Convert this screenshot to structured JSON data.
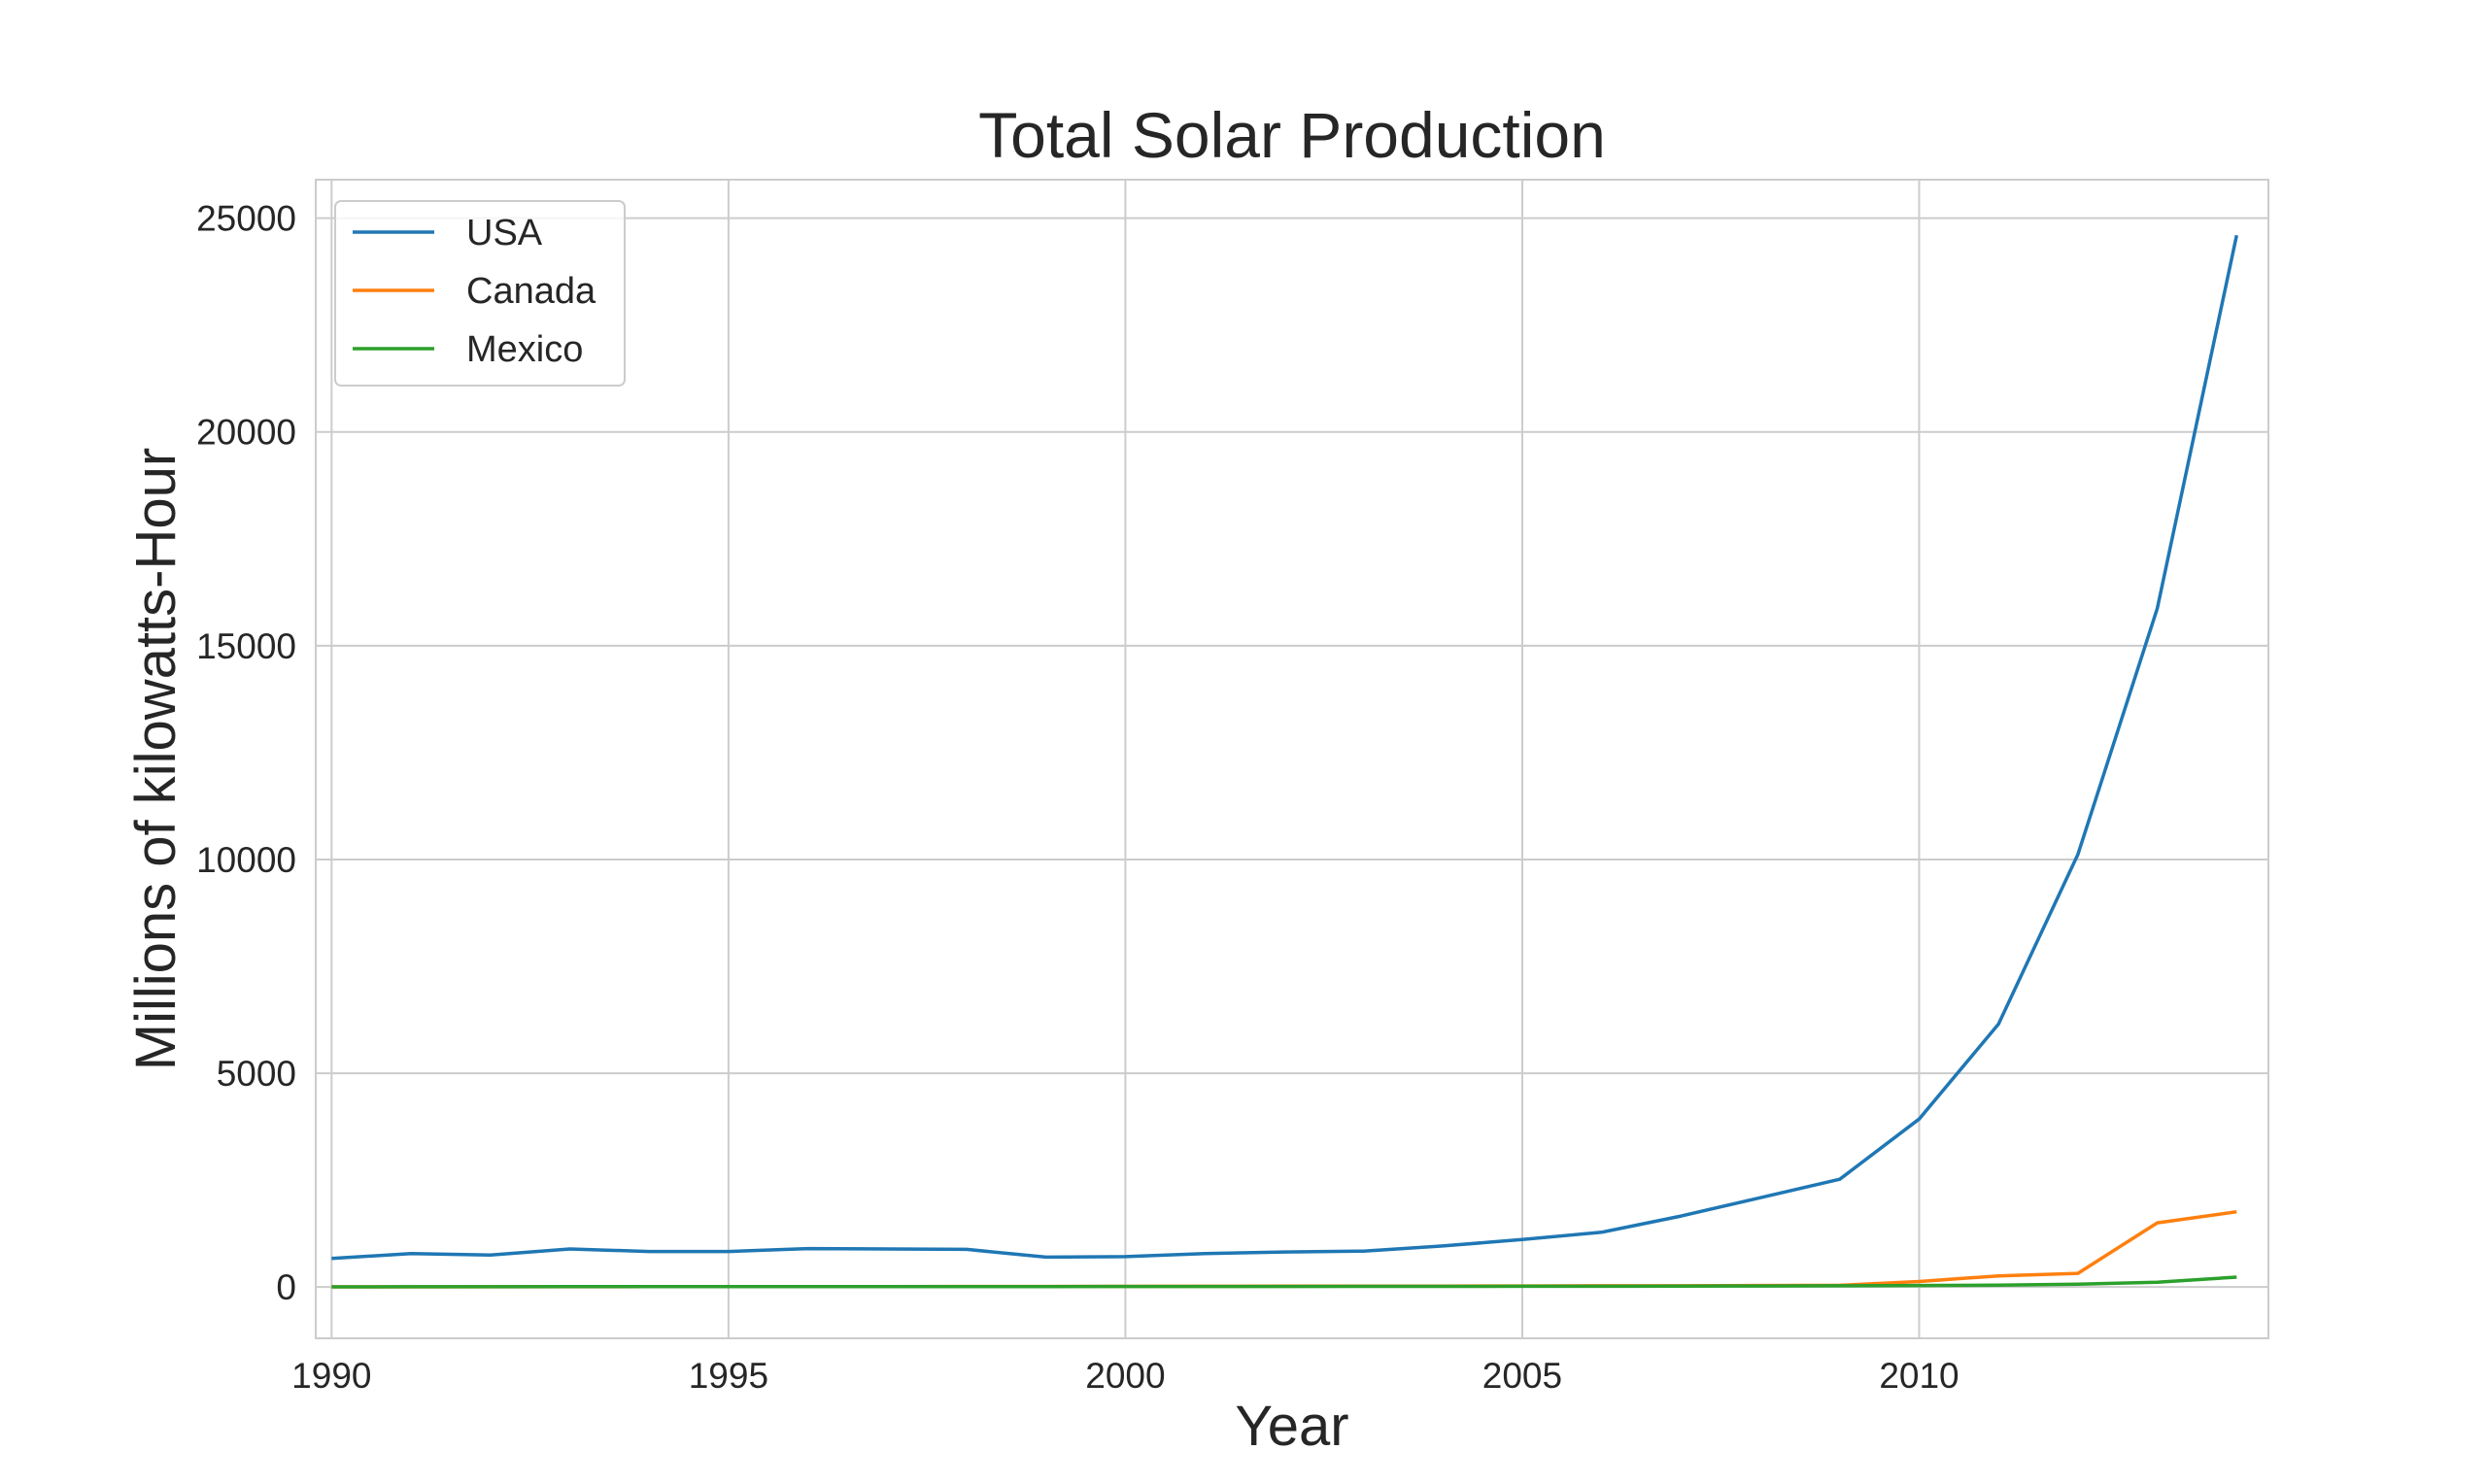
{
  "chart_data": {
    "type": "line",
    "title": "Total Solar Production",
    "xlabel": "Year",
    "ylabel": "Millions of kilowatts-Hour",
    "xlim": [
      1989.8,
      2014.4
    ],
    "ylim": [
      -1200,
      25900
    ],
    "xticks": [
      1990,
      1995,
      2000,
      2005,
      2010
    ],
    "yticks": [
      0,
      5000,
      10000,
      15000,
      20000,
      25000
    ],
    "grid": true,
    "legend_position": "top-left",
    "x": [
      1990,
      1991,
      1992,
      1993,
      1994,
      1995,
      1996,
      1997,
      1998,
      1999,
      2000,
      2001,
      2002,
      2003,
      2004,
      2005,
      2006,
      2007,
      2008,
      2009,
      2010,
      2011,
      2012,
      2013,
      2014
    ],
    "series": [
      {
        "name": "USA",
        "color": "#1f77b4",
        "values": [
          670,
          780,
          750,
          890,
          830,
          830,
          900,
          890,
          880,
          700,
          710,
          780,
          820,
          840,
          960,
          1110,
          1280,
          1660,
          2090,
          2520,
          3930,
          6150,
          10120,
          15870,
          24600
        ]
      },
      {
        "name": "Canada",
        "color": "#ff7f0e",
        "values": [
          5,
          5,
          6,
          7,
          8,
          9,
          10,
          11,
          12,
          14,
          16,
          17,
          19,
          20,
          22,
          25,
          28,
          30,
          35,
          40,
          130,
          260,
          320,
          1500,
          1760
        ]
      },
      {
        "name": "Mexico",
        "color": "#2ca02c",
        "values": [
          5,
          6,
          7,
          8,
          8,
          9,
          9,
          10,
          10,
          11,
          12,
          13,
          14,
          15,
          16,
          17,
          18,
          20,
          25,
          30,
          35,
          45,
          65,
          110,
          230
        ]
      }
    ]
  }
}
